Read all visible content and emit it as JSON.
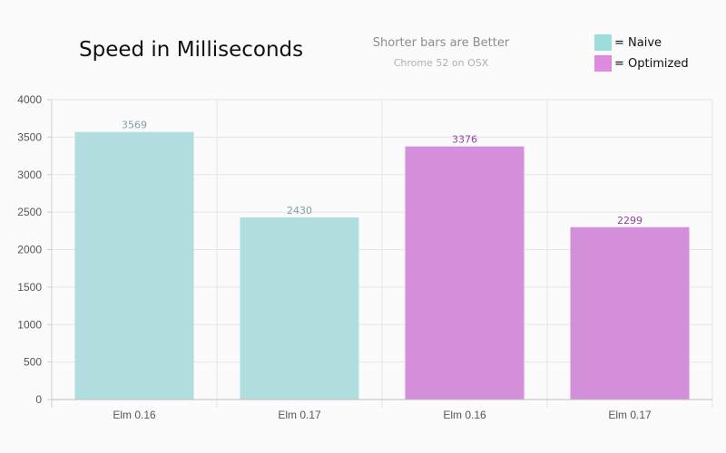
{
  "header": {
    "title": "Speed in Milliseconds",
    "subtitle": "Shorter bars are Better",
    "environment": "Chrome 52 on OSX"
  },
  "legend": {
    "items": [
      {
        "label": "= Naive",
        "color": "#9fdcdc"
      },
      {
        "label": "= Optimized",
        "color": "#e089e0"
      }
    ]
  },
  "chart_data": {
    "type": "bar",
    "title": "Speed in Milliseconds",
    "xlabel": "",
    "ylabel": "",
    "ylim": [
      0,
      4000
    ],
    "yticks": [
      0,
      500,
      1000,
      1500,
      2000,
      2500,
      3000,
      3500,
      4000
    ],
    "grid": true,
    "legend_position": "top-right",
    "categories": [
      "Elm 0.16",
      "Elm 0.17",
      "Elm 0.16",
      "Elm 0.17"
    ],
    "values": [
      3569,
      2430,
      3376,
      2299
    ],
    "series_of_bar": [
      "= Naive",
      "= Naive",
      "= Optimized",
      "= Optimized"
    ],
    "bar_colors": [
      "#b2dddf",
      "#b2dddf",
      "#d48fdb",
      "#d48fdb"
    ],
    "label_colors": [
      "#7aa3a6",
      "#7aa3a6",
      "#9a3d9f",
      "#9a3d9f"
    ],
    "data_labels": [
      "3569",
      "2430",
      "3376",
      "2299"
    ]
  }
}
